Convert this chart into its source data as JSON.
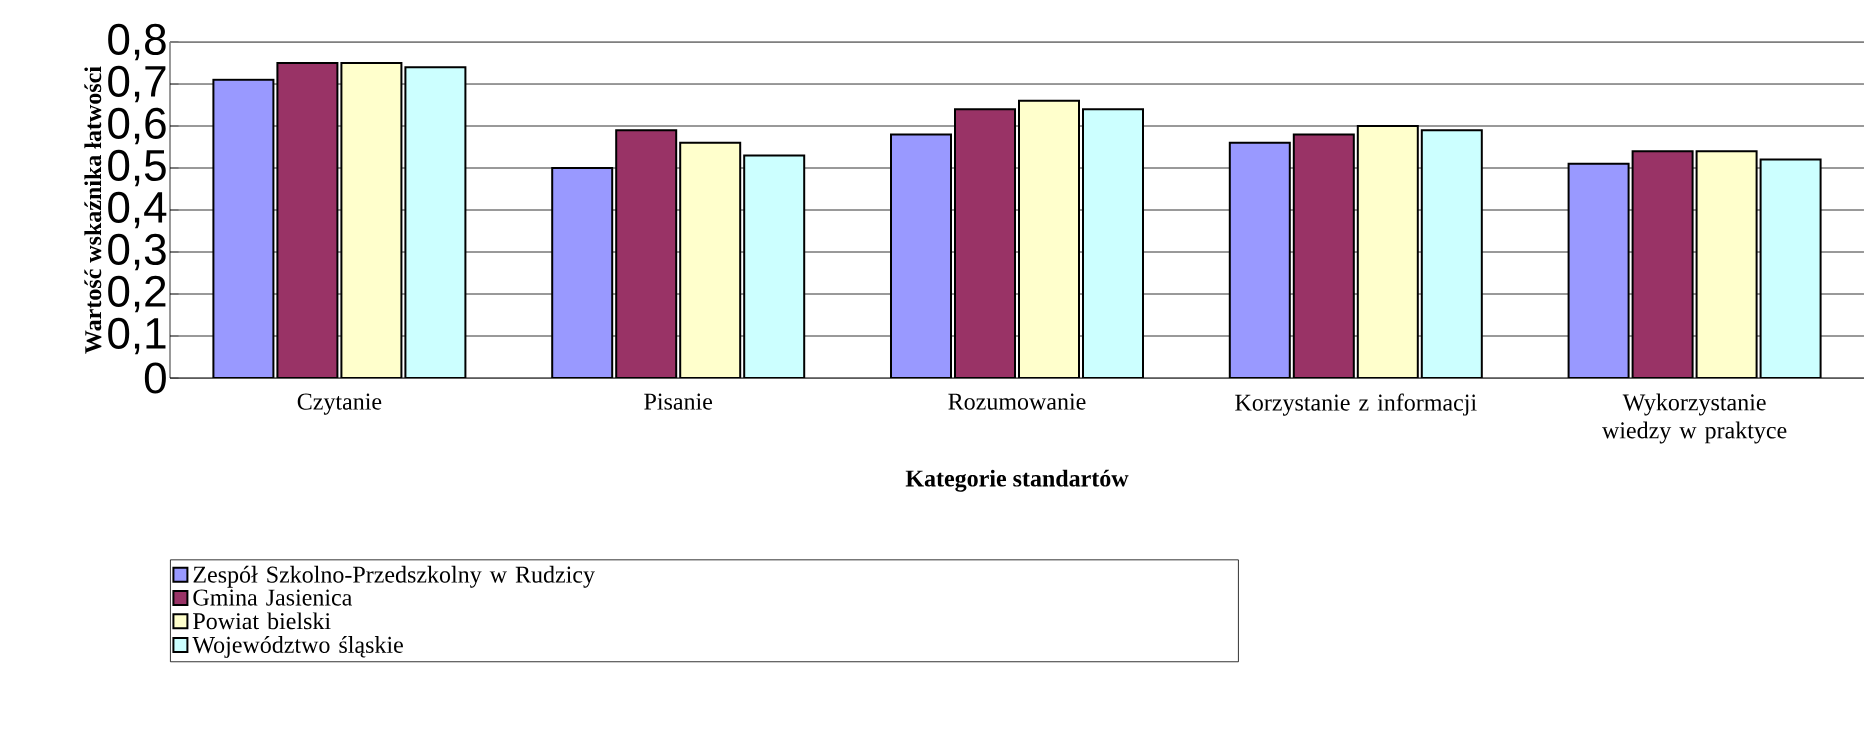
{
  "chart_data": {
    "type": "bar",
    "xlabel": "Kategorie standartów",
    "ylabel": "Wartość wskaźnika łatwości",
    "categories": [
      "Czytanie",
      "Pisanie",
      "Rozumowanie",
      "Korzystanie z informacji",
      "Wykorzystanie wiedzy w praktyce"
    ],
    "series": [
      {
        "name": "Zespół Szkolno-Przedszkolny w Rudzicy",
        "color": "#9999ff",
        "values": [
          0.71,
          0.5,
          0.58,
          0.56,
          0.51
        ]
      },
      {
        "name": "Gmina Jasienica",
        "color": "#993366",
        "values": [
          0.75,
          0.59,
          0.64,
          0.58,
          0.54
        ]
      },
      {
        "name": "Powiat bielski",
        "color": "#ffffcc",
        "values": [
          0.75,
          0.56,
          0.66,
          0.6,
          0.54
        ]
      },
      {
        "name": "Województwo śląskie",
        "color": "#ccffff",
        "values": [
          0.74,
          0.53,
          0.64,
          0.59,
          0.52
        ]
      }
    ],
    "ylim": [
      0,
      0.8
    ],
    "yticks": [
      {
        "value": 0,
        "label": "0"
      },
      {
        "value": 0.1,
        "label": "0,1"
      },
      {
        "value": 0.2,
        "label": "0,2"
      },
      {
        "value": 0.3,
        "label": "0,3"
      },
      {
        "value": 0.4,
        "label": "0,4"
      },
      {
        "value": 0.5,
        "label": "0,5"
      },
      {
        "value": 0.6,
        "label": "0,6"
      },
      {
        "value": 0.7,
        "label": "0,7"
      },
      {
        "value": 0.8,
        "label": "0,8"
      }
    ],
    "grid": "y",
    "legend": "bottom"
  }
}
